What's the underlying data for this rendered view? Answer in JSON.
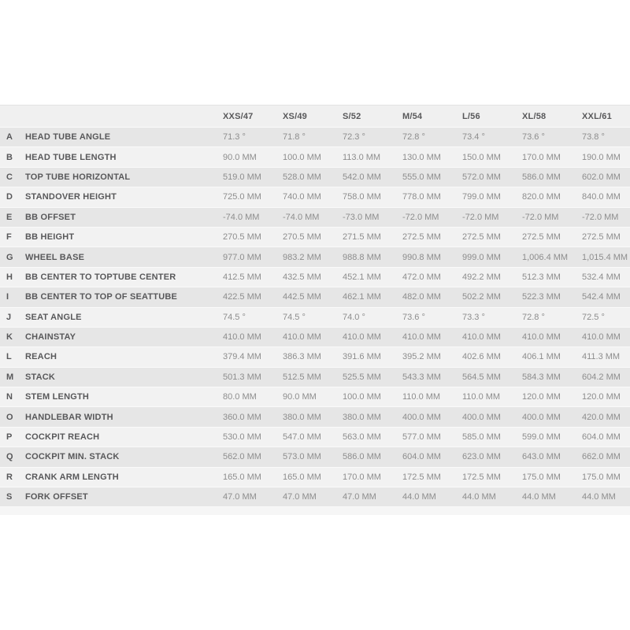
{
  "table": {
    "size_headers": [
      "XXS/47",
      "XS/49",
      "S/52",
      "M/54",
      "L/56",
      "XL/58",
      "XXL/61"
    ],
    "rows": [
      {
        "letter": "A",
        "label": "HEAD TUBE ANGLE",
        "values": [
          "71.3 °",
          "71.8 °",
          "72.3 °",
          "72.8 °",
          "73.4 °",
          "73.6 °",
          "73.8 °"
        ]
      },
      {
        "letter": "B",
        "label": "HEAD TUBE LENGTH",
        "values": [
          "90.0 MM",
          "100.0 MM",
          "113.0 MM",
          "130.0 MM",
          "150.0 MM",
          "170.0 MM",
          "190.0 MM"
        ]
      },
      {
        "letter": "C",
        "label": "TOP TUBE HORIZONTAL",
        "values": [
          "519.0 MM",
          "528.0 MM",
          "542.0 MM",
          "555.0 MM",
          "572.0 MM",
          "586.0 MM",
          "602.0 MM"
        ]
      },
      {
        "letter": "D",
        "label": "STANDOVER HEIGHT",
        "values": [
          "725.0 MM",
          "740.0 MM",
          "758.0 MM",
          "778.0 MM",
          "799.0 MM",
          "820.0 MM",
          "840.0 MM"
        ]
      },
      {
        "letter": "E",
        "label": "BB OFFSET",
        "values": [
          "-74.0 MM",
          "-74.0 MM",
          "-73.0 MM",
          "-72.0 MM",
          "-72.0 MM",
          "-72.0 MM",
          "-72.0 MM"
        ]
      },
      {
        "letter": "F",
        "label": "BB HEIGHT",
        "values": [
          "270.5 MM",
          "270.5 MM",
          "271.5 MM",
          "272.5 MM",
          "272.5 MM",
          "272.5 MM",
          "272.5 MM"
        ]
      },
      {
        "letter": "G",
        "label": "WHEEL BASE",
        "values": [
          "977.0 MM",
          "983.2 MM",
          "988.8 MM",
          "990.8 MM",
          "999.0 MM",
          "1,006.4 MM",
          "1,015.4 MM"
        ]
      },
      {
        "letter": "H",
        "label": "BB CENTER TO TOPTUBE CENTER",
        "values": [
          "412.5 MM",
          "432.5 MM",
          "452.1 MM",
          "472.0 MM",
          "492.2 MM",
          "512.3 MM",
          "532.4 MM"
        ]
      },
      {
        "letter": "I",
        "label": "BB CENTER TO TOP OF SEATTUBE",
        "values": [
          "422.5 MM",
          "442.5 MM",
          "462.1 MM",
          "482.0 MM",
          "502.2 MM",
          "522.3 MM",
          "542.4 MM"
        ]
      },
      {
        "letter": "J",
        "label": "SEAT ANGLE",
        "values": [
          "74.5 °",
          "74.5 °",
          "74.0 °",
          "73.6 °",
          "73.3 °",
          "72.8 °",
          "72.5 °"
        ]
      },
      {
        "letter": "K",
        "label": "CHAINSTAY",
        "values": [
          "410.0 MM",
          "410.0 MM",
          "410.0 MM",
          "410.0 MM",
          "410.0 MM",
          "410.0 MM",
          "410.0 MM"
        ]
      },
      {
        "letter": "L",
        "label": "REACH",
        "values": [
          "379.4 MM",
          "386.3 MM",
          "391.6 MM",
          "395.2 MM",
          "402.6 MM",
          "406.1 MM",
          "411.3 MM"
        ]
      },
      {
        "letter": "M",
        "label": "STACK",
        "values": [
          "501.3 MM",
          "512.5 MM",
          "525.5 MM",
          "543.3 MM",
          "564.5 MM",
          "584.3 MM",
          "604.2 MM"
        ]
      },
      {
        "letter": "N",
        "label": "STEM LENGTH",
        "values": [
          "80.0 MM",
          "90.0 MM",
          "100.0 MM",
          "110.0 MM",
          "110.0 MM",
          "120.0 MM",
          "120.0 MM"
        ]
      },
      {
        "letter": "O",
        "label": "HANDLEBAR WIDTH",
        "values": [
          "360.0 MM",
          "380.0 MM",
          "380.0 MM",
          "400.0 MM",
          "400.0 MM",
          "400.0 MM",
          "420.0 MM"
        ]
      },
      {
        "letter": "P",
        "label": "COCKPIT REACH",
        "values": [
          "530.0 MM",
          "547.0 MM",
          "563.0 MM",
          "577.0 MM",
          "585.0 MM",
          "599.0 MM",
          "604.0 MM"
        ]
      },
      {
        "letter": "Q",
        "label": "COCKPIT MIN. STACK",
        "values": [
          "562.0 MM",
          "573.0 MM",
          "586.0 MM",
          "604.0 MM",
          "623.0 MM",
          "643.0 MM",
          "662.0 MM"
        ]
      },
      {
        "letter": "R",
        "label": "CRANK ARM LENGTH",
        "values": [
          "165.0 MM",
          "165.0 MM",
          "170.0 MM",
          "172.5 MM",
          "172.5 MM",
          "175.0 MM",
          "175.0 MM"
        ]
      },
      {
        "letter": "S",
        "label": "FORK OFFSET",
        "values": [
          "47.0 MM",
          "47.0 MM",
          "47.0 MM",
          "44.0 MM",
          "44.0 MM",
          "44.0 MM",
          "44.0 MM"
        ]
      }
    ],
    "colors": {
      "row_odd_bg": "#e6e6e6",
      "row_even_bg": "#f2f2f2",
      "header_bg": "#f0f0f0",
      "label_text": "#58585a",
      "value_text": "#8d8d8d"
    }
  }
}
